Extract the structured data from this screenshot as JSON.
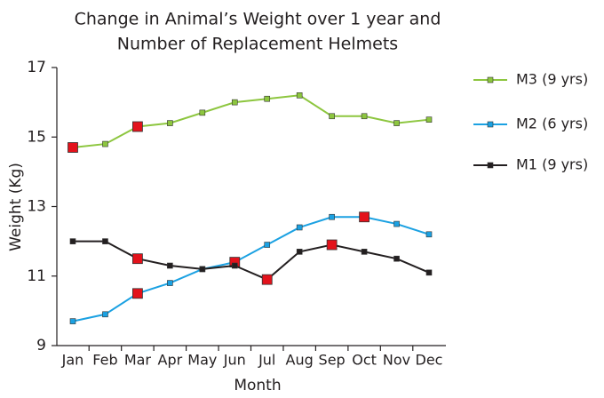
{
  "chart_data": {
    "type": "line",
    "title": [
      "Change in Animal’s Weight over 1 year and",
      "Number of Replacement Helmets"
    ],
    "xlabel": "Month",
    "ylabel": "Weight (Kg)",
    "categories": [
      "Jan",
      "Feb",
      "Mar",
      "Apr",
      "May",
      "Jun",
      "Jul",
      "Aug",
      "Sep",
      "Oct",
      "Nov",
      "Dec"
    ],
    "series": [
      {
        "name": "M3 (9 yrs)",
        "color": "#8dc63f",
        "values": [
          14.7,
          14.8,
          15.3,
          15.4,
          15.7,
          16.0,
          16.1,
          16.2,
          15.6,
          15.6,
          15.4,
          15.5
        ],
        "highlights": [
          0,
          2
        ]
      },
      {
        "name": "M2 (6 yrs)",
        "color": "#1ba1e2",
        "values": [
          9.7,
          9.9,
          10.5,
          10.8,
          11.2,
          11.4,
          11.9,
          12.4,
          12.7,
          12.7,
          12.5,
          12.2
        ],
        "highlights": [
          2,
          5,
          9
        ]
      },
      {
        "name": "M1 (9 yrs)",
        "color": "#231f20",
        "values": [
          12.0,
          12.0,
          11.5,
          11.3,
          11.2,
          11.3,
          10.9,
          11.7,
          11.9,
          11.7,
          11.5,
          11.1
        ],
        "highlights": [
          2,
          6,
          8
        ]
      }
    ],
    "highlight_color": "#e3121b",
    "ylim": [
      9,
      17
    ],
    "yticks": [
      9,
      11,
      13,
      15,
      17
    ],
    "grid": false,
    "legend": "right"
  }
}
